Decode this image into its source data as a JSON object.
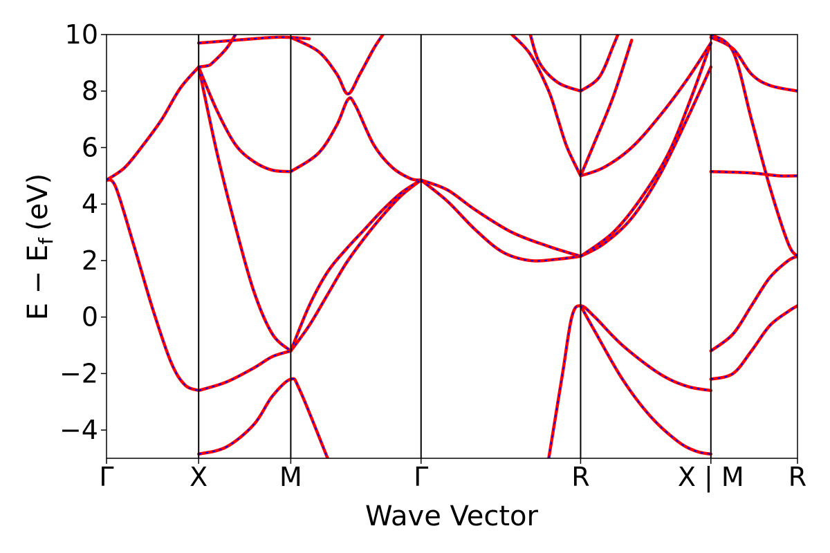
{
  "chart_data": {
    "type": "line",
    "title": "",
    "xlabel": "Wave Vector",
    "ylabel": "E − E",
    "ylabel_subscript": "f",
    "ylabel_unit": "(eV)",
    "ylim": [
      -5,
      10
    ],
    "yticks": [
      -4,
      -2,
      0,
      2,
      4,
      6,
      8,
      10
    ],
    "ytick_labels": [
      "−4",
      "−2",
      "0",
      "2",
      "4",
      "6",
      "8",
      "10"
    ],
    "grid": false,
    "legend": "none",
    "path_length": 7.5,
    "kpoints": [
      {
        "label": "Γ",
        "x": 0
      },
      {
        "label": "X",
        "x": 1
      },
      {
        "label": "M",
        "x": 2
      },
      {
        "label": "Γ",
        "x": 3.414
      },
      {
        "label": "R",
        "x": 5.146
      },
      {
        "label": "X | M",
        "x": 6.56
      },
      {
        "label": "R",
        "x": 7.5
      }
    ],
    "colors": {
      "solid": "#ff0000",
      "dashed": "#0000ff"
    },
    "series": [
      {
        "points": [
          [
            0,
            4.85
          ],
          [
            0.1,
            4.6
          ],
          [
            0.3,
            2.5
          ],
          [
            0.5,
            0.3
          ],
          [
            0.7,
            -1.6
          ],
          [
            0.85,
            -2.4
          ],
          [
            1,
            -2.6
          ]
        ]
      },
      {
        "points": [
          [
            0,
            4.85
          ],
          [
            0.2,
            5.3
          ],
          [
            0.4,
            6.1
          ],
          [
            0.6,
            7.0
          ],
          [
            0.8,
            8.1
          ],
          [
            1,
            8.85
          ]
        ]
      },
      {
        "points": [
          [
            1,
            8.85
          ],
          [
            1.2,
            7.3
          ],
          [
            1.4,
            6.1
          ],
          [
            1.6,
            5.5
          ],
          [
            1.8,
            5.2
          ],
          [
            2,
            5.15
          ]
        ]
      },
      {
        "points": [
          [
            1,
            8.85
          ],
          [
            1.2,
            5.8
          ],
          [
            1.4,
            3.2
          ],
          [
            1.6,
            0.9
          ],
          [
            1.8,
            -0.6
          ],
          [
            2,
            -1.2
          ]
        ]
      },
      {
        "points": [
          [
            1,
            -2.6
          ],
          [
            1.3,
            -2.3
          ],
          [
            1.6,
            -1.8
          ],
          [
            1.8,
            -1.4
          ],
          [
            2,
            -1.2
          ]
        ]
      },
      {
        "points": [
          [
            1,
            -4.85
          ],
          [
            1.3,
            -4.6
          ],
          [
            1.6,
            -3.8
          ],
          [
            1.8,
            -2.8
          ],
          [
            2,
            -2.2
          ],
          [
            2.1,
            -2.6
          ],
          [
            2.4,
            -5.0
          ]
        ]
      },
      {
        "points": [
          [
            1,
            8.85
          ],
          [
            1.1,
            8.9
          ],
          [
            1.15,
            9.0
          ],
          [
            1.3,
            9.5
          ],
          [
            1.4,
            10
          ]
        ]
      },
      {
        "points": [
          [
            1,
            9.7
          ],
          [
            1.4,
            9.8
          ],
          [
            1.8,
            9.9
          ],
          [
            2,
            9.9
          ],
          [
            2.2,
            9.85
          ]
        ]
      },
      {
        "points": [
          [
            2,
            5.15
          ],
          [
            2.3,
            5.8
          ],
          [
            2.5,
            6.8
          ],
          [
            2.62,
            7.7
          ],
          [
            2.7,
            7.5
          ],
          [
            2.9,
            6.1
          ],
          [
            3.1,
            5.3
          ],
          [
            3.3,
            4.9
          ],
          [
            3.414,
            4.85
          ]
        ]
      },
      {
        "points": [
          [
            2,
            9.9
          ],
          [
            2.3,
            9.4
          ],
          [
            2.5,
            8.6
          ],
          [
            2.62,
            7.9
          ],
          [
            2.75,
            8.6
          ],
          [
            2.9,
            9.5
          ],
          [
            3.0,
            10
          ]
        ]
      },
      {
        "points": [
          [
            2,
            -1.2
          ],
          [
            2.2,
            -0.3
          ],
          [
            2.4,
            0.8
          ],
          [
            2.6,
            1.9
          ],
          [
            2.8,
            2.8
          ],
          [
            3.0,
            3.6
          ],
          [
            3.2,
            4.3
          ],
          [
            3.414,
            4.85
          ]
        ]
      },
      {
        "points": [
          [
            2,
            -1.2
          ],
          [
            2.2,
            0.4
          ],
          [
            2.4,
            1.6
          ],
          [
            2.6,
            2.4
          ],
          [
            2.8,
            3.1
          ],
          [
            3.0,
            3.8
          ],
          [
            3.2,
            4.4
          ],
          [
            3.414,
            4.85
          ]
        ]
      },
      {
        "points": [
          [
            3.414,
            4.85
          ],
          [
            3.7,
            4.5
          ],
          [
            4.0,
            3.8
          ],
          [
            4.4,
            3.0
          ],
          [
            4.8,
            2.5
          ],
          [
            5.146,
            2.15
          ]
        ]
      },
      {
        "points": [
          [
            3.414,
            4.85
          ],
          [
            3.7,
            4.1
          ],
          [
            4.0,
            3.1
          ],
          [
            4.3,
            2.3
          ],
          [
            4.6,
            2.0
          ],
          [
            4.9,
            2.05
          ],
          [
            5.146,
            2.15
          ]
        ]
      },
      {
        "points": [
          [
            4.8,
            -5.0
          ],
          [
            4.95,
            -2.0
          ],
          [
            5.05,
            0.0
          ],
          [
            5.146,
            0.4
          ],
          [
            5.3,
            0.0
          ],
          [
            5.6,
            -1.0
          ],
          [
            6.0,
            -2.0
          ],
          [
            6.3,
            -2.45
          ],
          [
            6.56,
            -2.6
          ]
        ]
      },
      {
        "points": [
          [
            5.146,
            0.4
          ],
          [
            5.3,
            -0.5
          ],
          [
            5.6,
            -2.2
          ],
          [
            5.9,
            -3.5
          ],
          [
            6.2,
            -4.4
          ],
          [
            6.4,
            -4.75
          ],
          [
            6.56,
            -4.85
          ]
        ]
      },
      {
        "points": [
          [
            5.146,
            2.15
          ],
          [
            5.4,
            2.6
          ],
          [
            5.7,
            3.5
          ],
          [
            6.0,
            5.0
          ],
          [
            6.3,
            7.0
          ],
          [
            6.56,
            8.85
          ]
        ]
      },
      {
        "points": [
          [
            5.146,
            2.15
          ],
          [
            5.5,
            3.0
          ],
          [
            5.8,
            4.2
          ],
          [
            6.1,
            5.8
          ],
          [
            6.35,
            7.8
          ],
          [
            6.56,
            9.7
          ]
        ]
      },
      {
        "points": [
          [
            5.146,
            5.0
          ],
          [
            5.4,
            5.3
          ],
          [
            5.7,
            6.0
          ],
          [
            6.0,
            7.1
          ],
          [
            6.3,
            8.4
          ],
          [
            6.56,
            9.7
          ]
        ]
      },
      {
        "points": [
          [
            5.146,
            5.0
          ],
          [
            5.3,
            6.2
          ],
          [
            5.5,
            7.8
          ],
          [
            5.7,
            9.8
          ]
        ]
      },
      {
        "points": [
          [
            5.146,
            5.0
          ],
          [
            5.0,
            6.0
          ],
          [
            4.9,
            7.0
          ],
          [
            4.8,
            8.0
          ],
          [
            4.6,
            9.3
          ],
          [
            4.4,
            10.0
          ]
        ]
      },
      {
        "points": [
          [
            5.146,
            8.0
          ],
          [
            4.9,
            8.3
          ],
          [
            4.7,
            9.0
          ],
          [
            4.6,
            10.0
          ]
        ]
      },
      {
        "points": [
          [
            5.146,
            8.0
          ],
          [
            5.35,
            8.5
          ],
          [
            5.5,
            9.6
          ],
          [
            5.55,
            10.0
          ]
        ]
      },
      {
        "points": [
          [
            6.56,
            9.9
          ],
          [
            6.8,
            9.5
          ],
          [
            7.0,
            8.6
          ],
          [
            7.2,
            8.2
          ],
          [
            7.5,
            8.0
          ]
        ]
      },
      {
        "points": [
          [
            6.56,
            5.15
          ],
          [
            7.0,
            5.1
          ],
          [
            7.3,
            5.0
          ],
          [
            7.5,
            5.0
          ]
        ]
      },
      {
        "points": [
          [
            6.56,
            -1.2
          ],
          [
            6.8,
            -0.6
          ],
          [
            7.0,
            0.4
          ],
          [
            7.2,
            1.4
          ],
          [
            7.4,
            2.0
          ],
          [
            7.5,
            2.15
          ]
        ]
      },
      {
        "points": [
          [
            6.56,
            -2.2
          ],
          [
            6.8,
            -2.0
          ],
          [
            7.0,
            -1.2
          ],
          [
            7.2,
            -0.3
          ],
          [
            7.4,
            0.2
          ],
          [
            7.5,
            0.4
          ]
        ]
      },
      {
        "points": [
          [
            6.56,
            10.0
          ],
          [
            6.8,
            9.4
          ],
          [
            7.0,
            7.0
          ],
          [
            7.2,
            4.6
          ],
          [
            7.4,
            2.6
          ],
          [
            7.5,
            2.15
          ]
        ]
      }
    ]
  }
}
